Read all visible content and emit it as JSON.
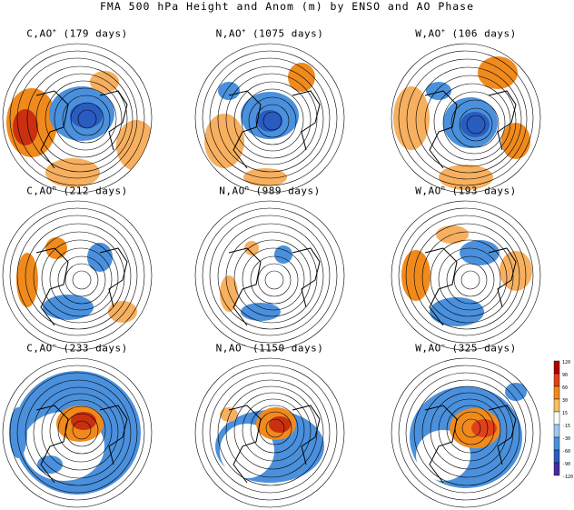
{
  "title": "FMA 500 hPa Height and Anom (m) by ENSO and AO Phase",
  "panels": [
    {
      "enso": "C",
      "ao": "AO",
      "sign": "+",
      "days": "(179 days)"
    },
    {
      "enso": "N",
      "ao": "AO",
      "sign": "+",
      "days": "(1075 days)"
    },
    {
      "enso": "W",
      "ao": "AO",
      "sign": "+",
      "days": "(106 days)"
    },
    {
      "enso": "C",
      "ao": "AO",
      "sign": "n",
      "days": "(212 days)"
    },
    {
      "enso": "N",
      "ao": "AO",
      "sign": "n",
      "days": "(989 days)"
    },
    {
      "enso": "W",
      "ao": "AO",
      "sign": "n",
      "days": "(193 days)"
    },
    {
      "enso": "C",
      "ao": "AO",
      "sign": "−",
      "days": "(233 days)"
    },
    {
      "enso": "N",
      "ao": "AO",
      "sign": "−",
      "days": "(1150 days)"
    },
    {
      "enso": "W",
      "ao": "AO",
      "sign": "−",
      "days": "(325 days)"
    }
  ],
  "colorbar": {
    "labels": [
      "120",
      "90",
      "60",
      "30",
      "15",
      "-15",
      "-30",
      "-60",
      "-90",
      "-120"
    ],
    "colors": [
      "#b00000",
      "#e0401a",
      "#f08a1c",
      "#f6c060",
      "#ffffff",
      "#9ec8ee",
      "#4a90dc",
      "#2a5cc0",
      "#4a2aa0"
    ]
  }
}
